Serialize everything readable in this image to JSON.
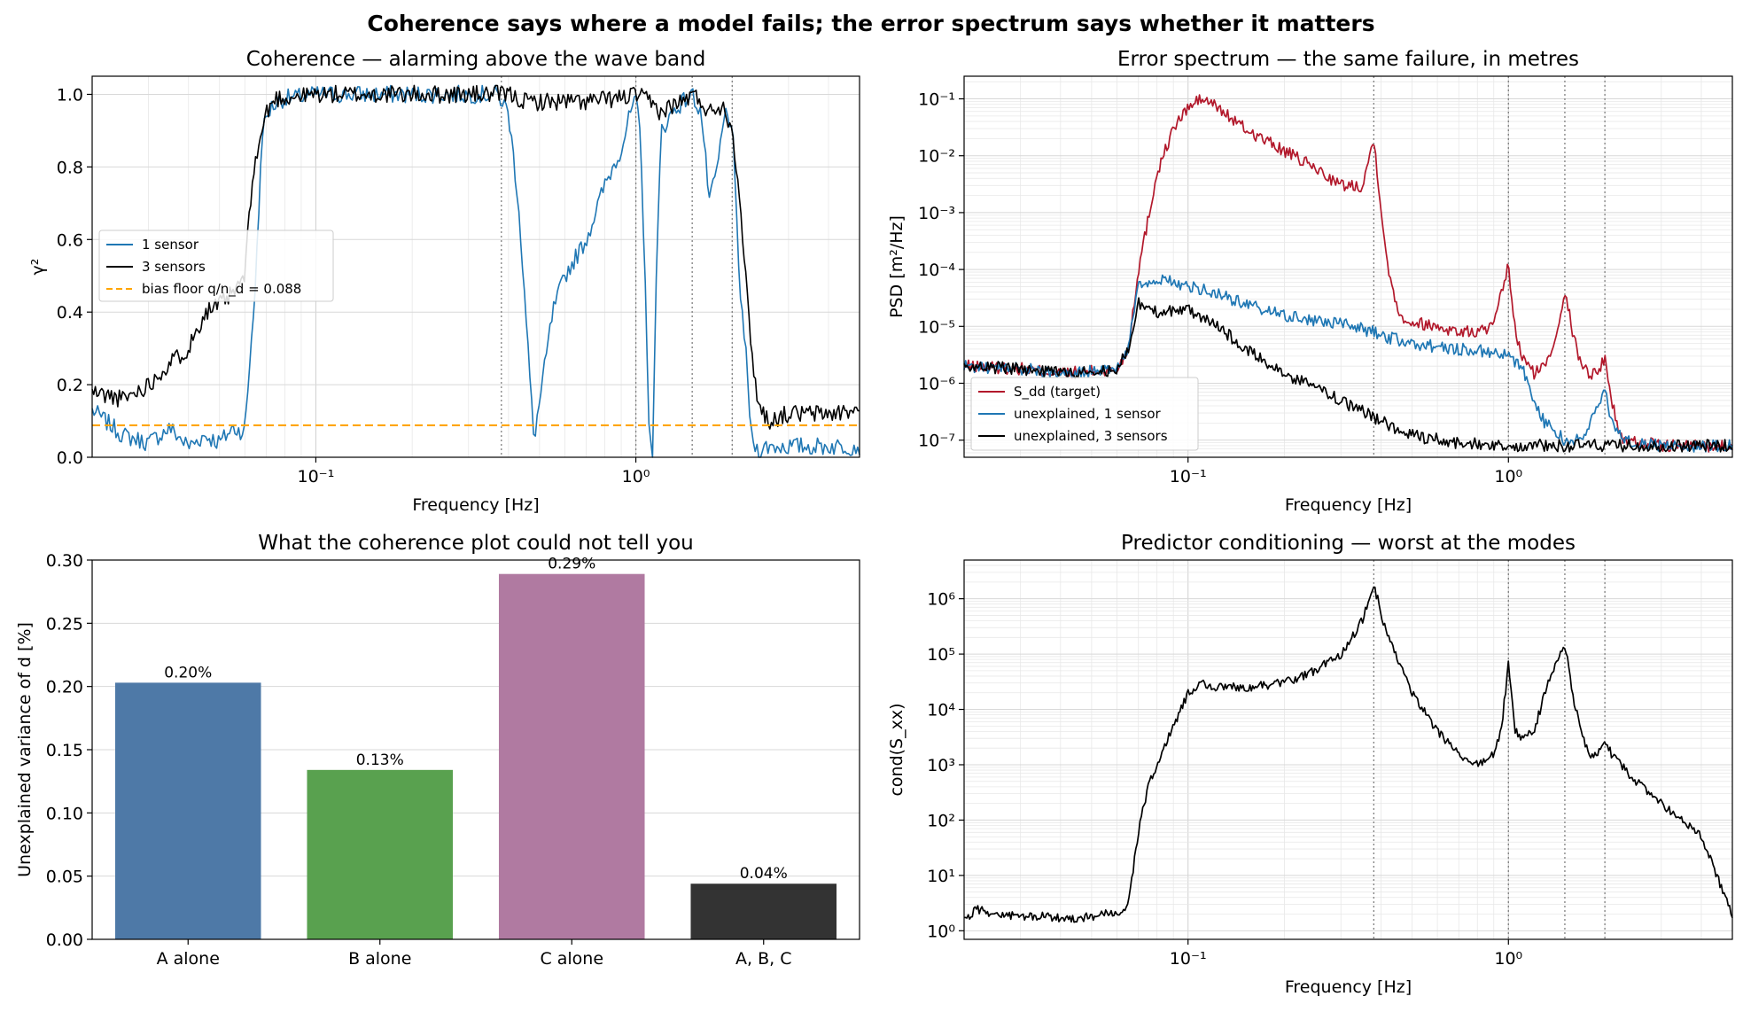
{
  "figure": {
    "suptitle": "Coherence says where a model fails; the error spectrum says whether it matters"
  },
  "colors": {
    "one_sensor": "#1f77b4",
    "three_sensors": "#000000",
    "bias_floor": "#ffa500",
    "target": "#b2182b",
    "bar_a": "#4e79a7",
    "bar_b": "#59a14f",
    "bar_c": "#b07aa1",
    "bar_abc": "#333333",
    "mode_line": "#7f7f7f"
  },
  "chart_data": [
    {
      "id": "coherence",
      "type": "line",
      "title": "Coherence — alarming above the wave band",
      "xlabel": "Frequency [Hz]",
      "ylabel": "γ²",
      "xscale": "log",
      "xlim": [
        0.02,
        5.0
      ],
      "ylim": [
        0.0,
        1.05
      ],
      "x_ticks": [
        "10⁻¹",
        "10⁰"
      ],
      "y_ticks": [
        "0.0",
        "0.2",
        "0.4",
        "0.6",
        "0.8",
        "1.0"
      ],
      "grid": true,
      "legend_position": "center-left",
      "mode_lines_hz": [
        0.38,
        1.0,
        1.5,
        2.0
      ],
      "series": [
        {
          "name": "1 sensor",
          "x": [
            0.02,
            0.025,
            0.03,
            0.035,
            0.04,
            0.045,
            0.05,
            0.055,
            0.06,
            0.065,
            0.068,
            0.072,
            0.076,
            0.08,
            0.085,
            0.1,
            0.2,
            0.3,
            0.37,
            0.4,
            0.43,
            0.46,
            0.48,
            0.5,
            0.55,
            0.6,
            0.7,
            0.8,
            0.9,
            0.97,
            1.0,
            1.03,
            1.07,
            1.1,
            1.13,
            1.15,
            1.2,
            1.3,
            1.4,
            1.5,
            1.6,
            1.7,
            1.8,
            1.9,
            2.0,
            2.1,
            2.2,
            2.3,
            2.4,
            2.6,
            3.0,
            4.0,
            5.0
          ],
          "values": [
            0.13,
            0.06,
            0.04,
            0.08,
            0.03,
            0.06,
            0.04,
            0.08,
            0.07,
            0.5,
            0.9,
            0.96,
            0.98,
            0.99,
            0.99,
            1.0,
            1.0,
            1.0,
            1.0,
            0.95,
            0.7,
            0.3,
            0.05,
            0.15,
            0.4,
            0.5,
            0.6,
            0.75,
            0.85,
            0.96,
            0.98,
            0.9,
            0.5,
            0.05,
            0.02,
            0.4,
            0.9,
            0.95,
            0.98,
            1.0,
            0.95,
            0.7,
            0.8,
            0.95,
            0.92,
            0.5,
            0.3,
            0.05,
            0.02,
            0.03,
            0.03,
            0.03,
            0.03
          ]
        },
        {
          "name": "3 sensors",
          "x": [
            0.02,
            0.025,
            0.03,
            0.035,
            0.04,
            0.045,
            0.05,
            0.055,
            0.06,
            0.063,
            0.066,
            0.07,
            0.075,
            0.08,
            0.1,
            0.2,
            0.3,
            0.4,
            0.45,
            0.5,
            0.7,
            0.9,
            1.0,
            1.1,
            1.2,
            1.3,
            1.4,
            1.5,
            1.6,
            1.7,
            1.8,
            1.9,
            2.0,
            2.1,
            2.2,
            2.3,
            2.4,
            2.6,
            3.0,
            4.0,
            5.0
          ],
          "values": [
            0.18,
            0.16,
            0.2,
            0.26,
            0.3,
            0.4,
            0.42,
            0.45,
            0.5,
            0.75,
            0.85,
            0.95,
            0.99,
            0.99,
            1.0,
            1.0,
            1.0,
            1.0,
            0.98,
            0.98,
            0.98,
            0.99,
            1.0,
            0.98,
            0.95,
            0.97,
            0.98,
            1.0,
            0.98,
            0.95,
            0.97,
            0.96,
            0.9,
            0.75,
            0.5,
            0.3,
            0.15,
            0.1,
            0.12,
            0.12,
            0.13
          ]
        },
        {
          "name": "bias floor q/n_d = 0.088",
          "x": [
            0.02,
            5.0
          ],
          "values": [
            0.088,
            0.088
          ]
        }
      ]
    },
    {
      "id": "error_spectrum",
      "type": "line",
      "title": "Error spectrum — the same failure, in metres",
      "xlabel": "Frequency [Hz]",
      "ylabel": "PSD [m²/Hz]",
      "xscale": "log",
      "yscale": "log",
      "xlim": [
        0.02,
        5.0
      ],
      "ylim": [
        5e-08,
        0.25
      ],
      "x_ticks": [
        "10⁻¹",
        "10⁰"
      ],
      "y_ticks": [
        "10⁻⁷",
        "10⁻⁶",
        "10⁻⁵",
        "10⁻⁴",
        "10⁻³",
        "10⁻²",
        "10⁻¹"
      ],
      "grid": true,
      "legend_position": "lower-left",
      "mode_lines_hz": [
        0.38,
        1.0,
        1.5,
        2.0
      ],
      "series": [
        {
          "name": "S_dd (target)",
          "x": [
            0.02,
            0.03,
            0.04,
            0.05,
            0.06,
            0.065,
            0.07,
            0.08,
            0.09,
            0.1,
            0.11,
            0.12,
            0.15,
            0.2,
            0.25,
            0.3,
            0.35,
            0.38,
            0.42,
            0.46,
            0.5,
            0.6,
            0.7,
            0.8,
            0.9,
            1.0,
            1.05,
            1.1,
            1.2,
            1.3,
            1.4,
            1.5,
            1.6,
            1.7,
            1.8,
            1.9,
            2.0,
            2.1,
            2.2,
            2.3,
            3.0,
            4.0,
            5.0
          ],
          "values": [
            2e-06,
            1.8e-06,
            1.5e-06,
            1.6e-06,
            1.7e-06,
            4e-06,
            0.0001,
            0.005,
            0.03,
            0.07,
            0.1,
            0.08,
            0.03,
            0.012,
            0.006,
            0.003,
            0.003,
            0.02,
            0.0001,
            1.5e-05,
            1.2e-05,
            1e-05,
            8e-06,
            8e-06,
            1e-05,
            0.00012,
            8e-06,
            3e-06,
            1.5e-06,
            2e-06,
            6e-06,
            4.5e-05,
            6e-06,
            2e-06,
            1.5e-06,
            1.5e-06,
            3e-06,
            5e-07,
            1.5e-07,
            1e-07,
            8e-08,
            8e-08,
            8e-08
          ]
        },
        {
          "name": "unexplained, 1 sensor",
          "x": [
            0.02,
            0.03,
            0.04,
            0.05,
            0.06,
            0.065,
            0.07,
            0.08,
            0.1,
            0.12,
            0.15,
            0.2,
            0.3,
            0.38,
            0.4,
            0.5,
            0.7,
            0.9,
            1.0,
            1.1,
            1.2,
            1.3,
            1.5,
            1.7,
            1.9,
            2.0,
            2.1,
            2.3,
            3.0,
            4.0,
            5.0
          ],
          "values": [
            2e-06,
            1.8e-06,
            1.5e-06,
            1.6e-06,
            1.7e-06,
            4e-06,
            5e-05,
            7e-05,
            5e-05,
            4e-05,
            2.5e-05,
            1.5e-05,
            1.1e-05,
            8e-06,
            7e-06,
            5e-06,
            4e-06,
            3.5e-06,
            3e-06,
            2e-06,
            5e-07,
            2e-07,
            1e-07,
            1e-07,
            4e-07,
            8e-07,
            2e-07,
            1e-07,
            8e-08,
            8e-08,
            8e-08
          ]
        },
        {
          "name": "unexplained, 3 sensors",
          "x": [
            0.02,
            0.03,
            0.04,
            0.05,
            0.06,
            0.065,
            0.07,
            0.08,
            0.1,
            0.12,
            0.15,
            0.2,
            0.3,
            0.38,
            0.5,
            0.7,
            1.0,
            2.0,
            3.0,
            5.0
          ],
          "values": [
            2e-06,
            1.8e-06,
            1.5e-06,
            1.6e-06,
            1.7e-06,
            4e-06,
            2.5e-05,
            1.8e-05,
            2e-05,
            1.2e-05,
            4e-06,
            1.5e-06,
            5e-07,
            2.5e-07,
            1.2e-07,
            9e-08,
            8e-08,
            8e-08,
            8e-08,
            8e-08
          ]
        }
      ]
    },
    {
      "id": "unexplained_variance",
      "type": "bar",
      "title": "What the coherence plot could not tell you",
      "xlabel": "",
      "ylabel": "Unexplained variance of d [%]",
      "ylim": [
        0.0,
        0.3
      ],
      "y_ticks": [
        "0.00",
        "0.05",
        "0.10",
        "0.15",
        "0.20",
        "0.25",
        "0.30"
      ],
      "grid": true,
      "categories": [
        "A alone",
        "B alone",
        "C alone",
        "A, B, C"
      ],
      "values": [
        0.203,
        0.134,
        0.289,
        0.044
      ],
      "value_labels": [
        "0.20%",
        "0.13%",
        "0.29%",
        "0.04%"
      ]
    },
    {
      "id": "conditioning",
      "type": "line",
      "title": "Predictor conditioning — worst at the modes",
      "xlabel": "Frequency [Hz]",
      "ylabel": "cond(S_xx)",
      "xscale": "log",
      "yscale": "log",
      "xlim": [
        0.02,
        5.0
      ],
      "ylim": [
        0.7,
        5000000.0
      ],
      "x_ticks": [
        "10⁻¹",
        "10⁰"
      ],
      "y_ticks": [
        "10⁰",
        "10¹",
        "10²",
        "10³",
        "10⁴",
        "10⁵",
        "10⁶"
      ],
      "grid": true,
      "mode_lines_hz": [
        0.38,
        1.0,
        1.5,
        2.0
      ],
      "series": [
        {
          "name": "cond(S_xx)",
          "x": [
            0.02,
            0.022,
            0.025,
            0.03,
            0.035,
            0.04,
            0.045,
            0.05,
            0.055,
            0.06,
            0.065,
            0.07,
            0.075,
            0.08,
            0.09,
            0.1,
            0.11,
            0.12,
            0.15,
            0.2,
            0.25,
            0.3,
            0.35,
            0.38,
            0.42,
            0.5,
            0.6,
            0.7,
            0.8,
            0.9,
            0.95,
            1.0,
            1.05,
            1.1,
            1.2,
            1.3,
            1.4,
            1.5,
            1.6,
            1.7,
            1.8,
            1.9,
            2.0,
            2.1,
            2.5,
            3.0,
            4.0,
            5.0
          ],
          "values": [
            1.5,
            2.5,
            2.0,
            1.8,
            1.8,
            1.7,
            1.7,
            1.8,
            2.0,
            1.9,
            3.0,
            60,
            400,
            1000,
            5000,
            20000,
            30000,
            25000,
            25000,
            30000,
            50000,
            100000,
            400000,
            1800000,
            200000,
            20000,
            4000,
            1500,
            1000,
            1500,
            4000,
            70000,
            4000,
            3000,
            4000,
            20000,
            60000,
            150000,
            15000,
            3000,
            1500,
            1500,
            3000,
            1500,
            500,
            200,
            50,
            2
          ]
        }
      ]
    }
  ]
}
